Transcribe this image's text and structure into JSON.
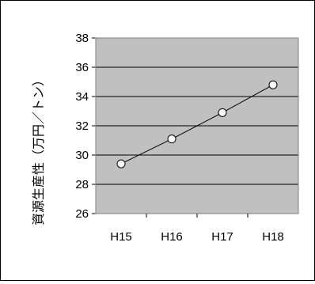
{
  "chart_data": {
    "type": "line",
    "title": "",
    "xlabel": "",
    "ylabel": "資源生産性（万円／トン）",
    "categories": [
      "H15",
      "H16",
      "H17",
      "H18"
    ],
    "series": [
      {
        "values": [
          29.4,
          31.1,
          32.9,
          34.8
        ]
      }
    ],
    "ylim": [
      26,
      38
    ],
    "yticks": [
      26,
      28,
      30,
      32,
      34,
      36,
      38
    ],
    "grid": true,
    "legend": "none",
    "colors": {
      "plot_background": "#c0c0c0",
      "line": "#000000",
      "marker_fill": "#ffffff",
      "marker_stroke": "#000000",
      "gridline": "#000000"
    }
  }
}
